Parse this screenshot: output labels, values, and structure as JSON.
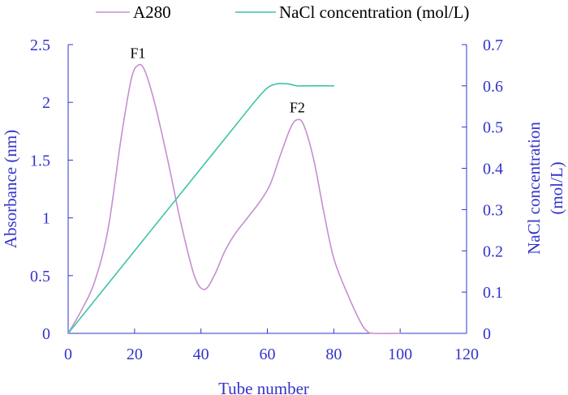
{
  "chart_data": {
    "type": "line",
    "xlabel": "Tube number",
    "ylabel": "Absorbance (nm)",
    "y2label_line1": "NaCl concentration",
    "y2label_line2": "(mol/L)",
    "xlim": [
      0,
      120
    ],
    "ylim": [
      0,
      2.5
    ],
    "y2lim": [
      0,
      0.7
    ],
    "x_ticks": [
      "0",
      "20",
      "40",
      "60",
      "80",
      "100",
      "120"
    ],
    "y_ticks": [
      "0",
      "0.5",
      "1",
      "1.5",
      "2",
      "2.5"
    ],
    "y2_ticks": [
      "0",
      "0.1",
      "0.2",
      "0.3",
      "0.4",
      "0.5",
      "0.6",
      "0.7"
    ],
    "legend": [
      "A280",
      "NaCl concentration (mol/L)"
    ],
    "series": [
      {
        "name": "A280",
        "axis": "left",
        "color": "#c58fd0",
        "points": [
          [
            0,
            0
          ],
          [
            4,
            0.2
          ],
          [
            8,
            0.45
          ],
          [
            12,
            0.9
          ],
          [
            16,
            1.7
          ],
          [
            19,
            2.2
          ],
          [
            21,
            2.32
          ],
          [
            23,
            2.28
          ],
          [
            26,
            2.0
          ],
          [
            30,
            1.5
          ],
          [
            34,
            0.95
          ],
          [
            38,
            0.5
          ],
          [
            41,
            0.38
          ],
          [
            44,
            0.5
          ],
          [
            47,
            0.7
          ],
          [
            50,
            0.85
          ],
          [
            54,
            1.0
          ],
          [
            58,
            1.15
          ],
          [
            61,
            1.3
          ],
          [
            64,
            1.55
          ],
          [
            67,
            1.78
          ],
          [
            69,
            1.85
          ],
          [
            71,
            1.8
          ],
          [
            74,
            1.5
          ],
          [
            77,
            1.05
          ],
          [
            80,
            0.65
          ],
          [
            84,
            0.35
          ],
          [
            88,
            0.1
          ],
          [
            90,
            0.02
          ],
          [
            92,
            0
          ],
          [
            100,
            0
          ]
        ]
      },
      {
        "name": "NaCl concentration (mol/L)",
        "axis": "right",
        "color": "#3fc4a8",
        "points": [
          [
            0,
            0
          ],
          [
            50,
            0.5
          ],
          [
            56,
            0.56
          ],
          [
            60,
            0.595
          ],
          [
            63,
            0.605
          ],
          [
            66,
            0.605
          ],
          [
            69,
            0.6
          ],
          [
            72,
            0.6
          ],
          [
            80,
            0.6
          ]
        ]
      }
    ],
    "annotations": [
      {
        "text": "F1",
        "x": 21,
        "y": 2.32
      },
      {
        "text": "F2",
        "x": 69,
        "y": 1.85
      }
    ]
  }
}
